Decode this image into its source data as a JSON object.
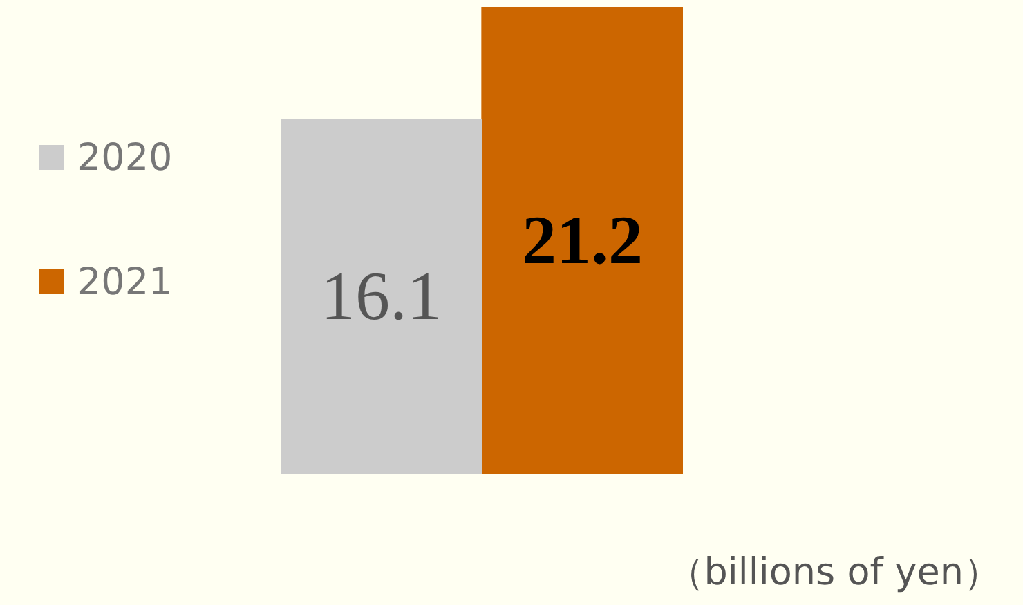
{
  "chart_data": {
    "type": "bar",
    "categories": [
      null
    ],
    "series": [
      {
        "name": "2020",
        "color": "#cccccc",
        "values": [
          16.1
        ]
      },
      {
        "name": "2021",
        "color": "#cc6600",
        "values": [
          21.2
        ]
      }
    ],
    "ylim": [
      0,
      21.2
    ],
    "legend": "left",
    "tick_labels": false,
    "data_labels": true,
    "annotations": [
      "（billions of yen）"
    ]
  }
}
